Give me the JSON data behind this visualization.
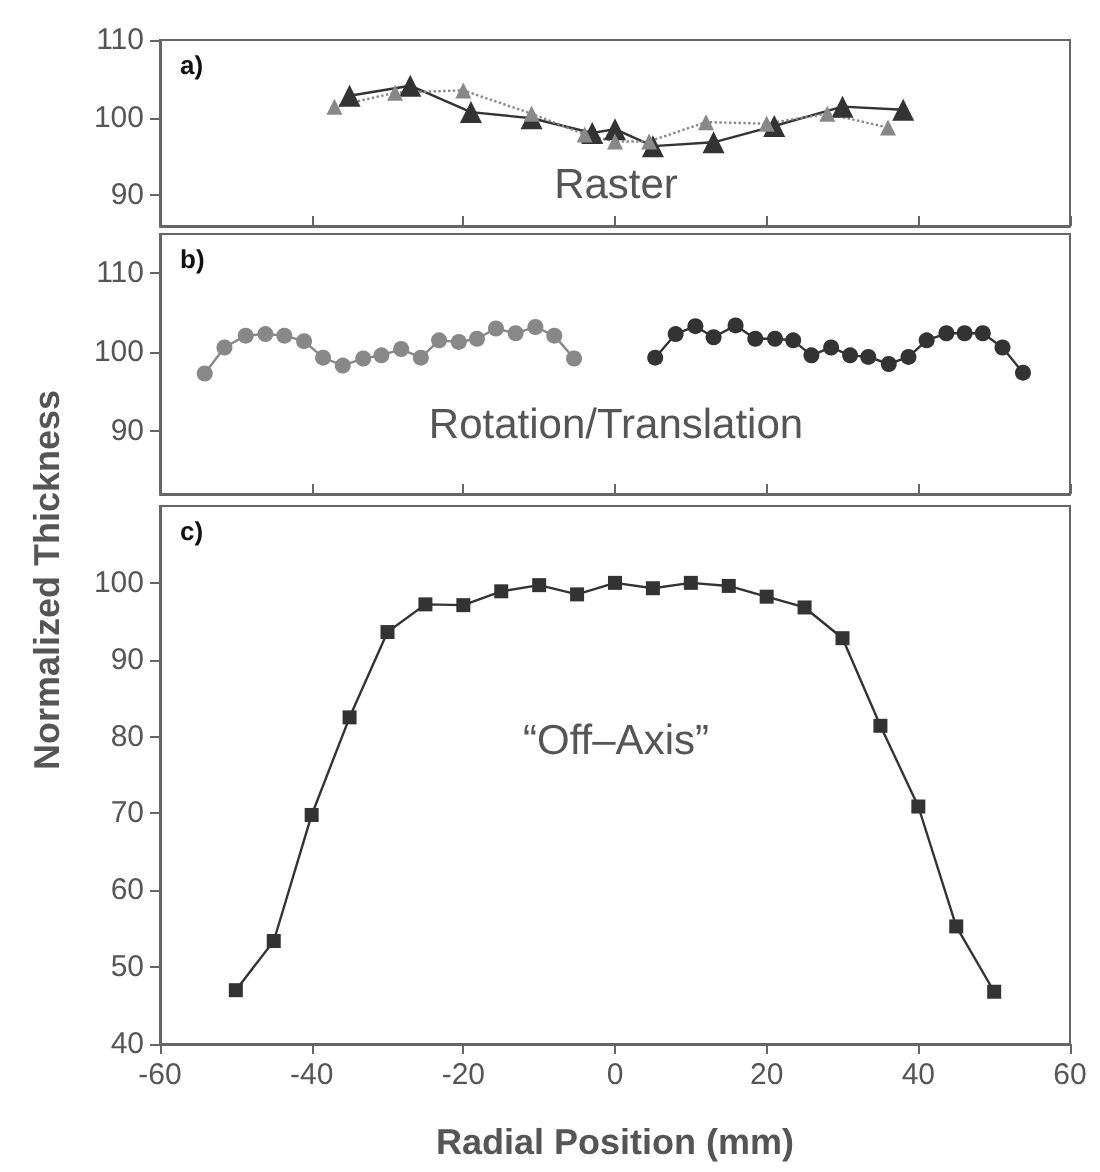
{
  "chart_data": [
    {
      "type": "line",
      "annotations": [
        "a)",
        "Raster"
      ],
      "xlim": [
        -60,
        60
      ],
      "xticks": [
        -60,
        -40,
        -20,
        0,
        20,
        40,
        60
      ],
      "ylim": [
        86,
        110
      ],
      "yticks": [
        90,
        100,
        110
      ],
      "tick_labels": "y",
      "grid": false,
      "series": [
        {
          "color": "#333333",
          "marker": "triangle",
          "line_style": "solid",
          "x": [
            -35,
            -27,
            -19,
            -11,
            -3,
            0,
            5,
            13,
            21,
            30,
            38
          ],
          "values": [
            102.8,
            104.1,
            100.7,
            99.9,
            98.0,
            98.5,
            96.3,
            96.8,
            98.9,
            101.4,
            101.0
          ]
        },
        {
          "color": "#888888",
          "marker": "triangle",
          "line_style": "dotted",
          "x": [
            -37,
            -29,
            -20,
            -11,
            -4,
            0,
            4.5,
            12,
            20,
            28,
            36
          ],
          "values": [
            101.4,
            103.2,
            103.5,
            100.5,
            97.8,
            96.9,
            96.9,
            99.4,
            99.2,
            100.5,
            98.7
          ]
        }
      ]
    },
    {
      "type": "line",
      "annotations": [
        "b)",
        "Rotation/Translation"
      ],
      "xlim": [
        -60,
        60
      ],
      "xticks": [
        -60,
        -40,
        -20,
        0,
        20,
        40,
        60
      ],
      "ylim": [
        82,
        115
      ],
      "yticks": [
        90,
        100,
        110
      ],
      "tick_labels": "y",
      "grid": false,
      "series": [
        {
          "color": "#888888",
          "marker": "circle",
          "line_style": "solid",
          "x": [
            -54.1,
            -51.5,
            -48.7,
            -46.1,
            -43.6,
            -41,
            -38.5,
            -35.9,
            -33.2,
            -30.8,
            -28.2,
            -25.6,
            -23.2,
            -20.6,
            -18.2,
            -15.7,
            -13.1,
            -10.5,
            -8,
            -5.4
          ],
          "values": [
            97.3,
            100.6,
            102.1,
            102.3,
            102.1,
            101.4,
            99.3,
            98.3,
            99.2,
            99.6,
            100.4,
            99.3,
            101.5,
            101.3,
            101.7,
            103.0,
            102.4,
            103.2,
            102.1,
            99.2
          ]
        },
        {
          "color": "#333333",
          "marker": "circle",
          "line_style": "solid",
          "x": [
            5.3,
            8,
            10.6,
            13,
            15.9,
            18.5,
            21.1,
            23.5,
            25.9,
            28.5,
            31,
            33.4,
            36.1,
            38.7,
            41.1,
            43.7,
            46.1,
            48.5,
            51.1,
            53.8
          ],
          "values": [
            99.3,
            102.3,
            103.3,
            101.9,
            103.4,
            101.7,
            101.7,
            101.5,
            99.6,
            100.6,
            99.6,
            99.4,
            98.5,
            99.4,
            101.5,
            102.4,
            102.4,
            102.4,
            100.6,
            97.4
          ]
        }
      ]
    },
    {
      "type": "line",
      "annotations": [
        "c)",
        "“Off–Axis”"
      ],
      "xlabel": "Radial Position (mm)",
      "ylabel": "Normalized Thickness",
      "xlim": [
        -60,
        60
      ],
      "xticks": [
        -60,
        -40,
        -20,
        0,
        20,
        40,
        60
      ],
      "ylim": [
        40,
        110
      ],
      "yticks": [
        40,
        50,
        60,
        70,
        80,
        90,
        100
      ],
      "grid": false,
      "series": [
        {
          "color": "#333333",
          "marker": "square",
          "line_style": "solid",
          "x": [
            -50,
            -45,
            -40,
            -35,
            -30,
            -25,
            -20,
            -15,
            -10,
            -5,
            0,
            5,
            10,
            15,
            20,
            25,
            30,
            35,
            40,
            45,
            50
          ],
          "values": [
            47.0,
            53.4,
            69.8,
            82.5,
            93.6,
            97.2,
            97.1,
            98.9,
            99.7,
            98.5,
            100.0,
            99.3,
            100.0,
            99.6,
            98.2,
            96.8,
            92.8,
            81.4,
            70.9,
            55.3,
            46.8
          ]
        }
      ]
    }
  ]
}
